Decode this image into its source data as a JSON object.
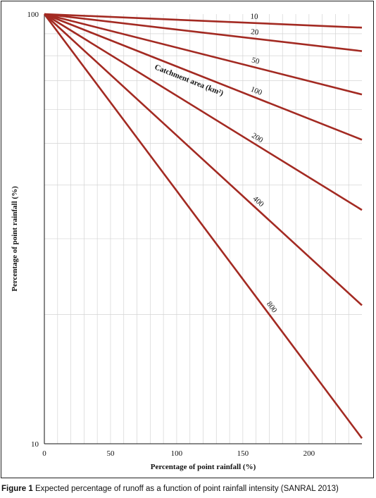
{
  "caption": {
    "label": "Figure 1",
    "text": "Expected percentage of runoff as a function of point rainfall intensity (SANRAL 2013)"
  },
  "chart_data": {
    "type": "line",
    "xlabel": "Percentage of point rainfall (%)",
    "ylabel": "Percentage of point rainfall (%)",
    "xlim": [
      0,
      240
    ],
    "ylim": [
      10,
      100
    ],
    "yscale": "log",
    "grid": true,
    "x_ticks": [
      0,
      50,
      100,
      150,
      200
    ],
    "y_ticks": [
      10,
      100
    ],
    "annotation": "Catchment area (km²)",
    "line_color": "#a32a22",
    "series": [
      {
        "name": "10",
        "x": [
          0,
          240
        ],
        "y": [
          100,
          93
        ]
      },
      {
        "name": "20",
        "x": [
          0,
          240
        ],
        "y": [
          100,
          82
        ]
      },
      {
        "name": "50",
        "x": [
          0,
          240
        ],
        "y": [
          100,
          65
        ]
      },
      {
        "name": "100",
        "x": [
          0,
          240
        ],
        "y": [
          100,
          51
        ]
      },
      {
        "name": "200",
        "x": [
          0,
          240
        ],
        "y": [
          100,
          35
        ]
      },
      {
        "name": "400",
        "x": [
          0,
          240
        ],
        "y": [
          100,
          21
        ]
      },
      {
        "name": "800",
        "x": [
          0,
          240
        ],
        "y": [
          100,
          10.3
        ]
      }
    ]
  }
}
